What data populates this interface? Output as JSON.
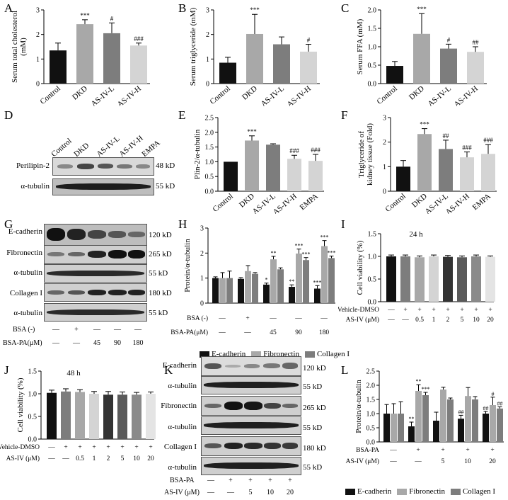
{
  "colors": {
    "black": "#111111",
    "dgray": "#4a4a4a",
    "mgray": "#7d7d7d",
    "lgray": "#a8a8a8",
    "vlgray": "#d4d4d4",
    "mid2": "#666666"
  },
  "panel_letters": {
    "A": "A",
    "B": "B",
    "C": "C",
    "D": "D",
    "E": "E",
    "F": "F",
    "G": "G",
    "H": "H",
    "I": "I",
    "J": "J",
    "K": "K",
    "L": "L"
  },
  "chart_data": [
    {
      "id": "A",
      "type": "bar",
      "ylabel_lines": [
        "Serum total cholesterol",
        "(mM)"
      ],
      "categories": [
        "Control",
        "DKD",
        "AS-IV-L",
        "AS-IV-H"
      ],
      "values": [
        1.35,
        2.42,
        2.05,
        1.55
      ],
      "errors": [
        0.3,
        0.18,
        0.42,
        0.1
      ],
      "ylim": [
        0,
        3
      ],
      "yticks": [
        0,
        1,
        2,
        3
      ],
      "annotations": [
        "",
        "***",
        "#",
        "###"
      ]
    },
    {
      "id": "B",
      "type": "bar",
      "ylabel_lines": [
        "Serum triglyceride (mM)"
      ],
      "categories": [
        "Control",
        "DKD",
        "AS-IV-L",
        "AS-IV-H"
      ],
      "values": [
        0.85,
        2.02,
        1.6,
        1.3
      ],
      "errors": [
        0.22,
        0.8,
        0.3,
        0.3
      ],
      "ylim": [
        0,
        3
      ],
      "yticks": [
        0,
        1,
        2,
        3
      ],
      "annotations": [
        "",
        "***",
        "",
        "#"
      ]
    },
    {
      "id": "C",
      "type": "bar",
      "ylabel_lines": [
        "Serum FFA (mM)"
      ],
      "categories": [
        "Control",
        "DKD",
        "AS-IV-L",
        "AS-IV-H"
      ],
      "values": [
        0.48,
        1.35,
        0.95,
        0.86
      ],
      "errors": [
        0.12,
        0.55,
        0.12,
        0.14
      ],
      "ylim": [
        0,
        2.0
      ],
      "yticks": [
        0,
        0.5,
        1.0,
        1.5,
        2.0
      ],
      "yticklabels": [
        "0.0",
        "0.5",
        "1.0",
        "1.5",
        "2.0"
      ],
      "annotations": [
        "",
        "***",
        "#",
        "##"
      ]
    },
    {
      "id": "E",
      "type": "bar",
      "ylabel_lines": [
        "Plin-2/α-tubulin"
      ],
      "categories": [
        "Control",
        "DKD",
        "AS-IV-L",
        "AS-IV-H",
        "EMPA"
      ],
      "values": [
        1.0,
        1.72,
        1.58,
        1.1,
        1.03
      ],
      "errors": [
        0.0,
        0.16,
        0.03,
        0.12,
        0.22
      ],
      "ylim": [
        0,
        2.5
      ],
      "yticks": [
        0,
        0.5,
        1.0,
        1.5,
        2.0,
        2.5
      ],
      "yticklabels": [
        "0.0",
        "0.5",
        "1.0",
        "1.5",
        "2.0",
        "2.5"
      ],
      "annotations": [
        "",
        "***",
        "",
        "###",
        "###"
      ]
    },
    {
      "id": "F",
      "type": "bar",
      "ylabel_lines": [
        "Triglyceride of",
        "kidney tissue (Fold)"
      ],
      "categories": [
        "Control",
        "DKD",
        "AS-IV-L",
        "AS-IV-H",
        "EMPA"
      ],
      "values": [
        1.0,
        2.33,
        1.72,
        1.38,
        1.52
      ],
      "errors": [
        0.25,
        0.22,
        0.36,
        0.22,
        0.38
      ],
      "ylim": [
        0,
        3
      ],
      "yticks": [
        0,
        1,
        2,
        3
      ],
      "annotations": [
        "",
        "***",
        "##",
        "###",
        "###"
      ]
    },
    {
      "id": "H",
      "type": "grouped-bar",
      "ylabel_lines": [
        "Protein/α-tubulin"
      ],
      "groups": 5,
      "series": [
        {
          "name": "E-cadherin",
          "values": [
            1.0,
            0.97,
            0.74,
            0.65,
            0.58
          ],
          "errors": [
            0.05,
            0.05,
            0.06,
            0.08,
            0.12
          ],
          "annotations": [
            "",
            "",
            "*",
            "**",
            "***"
          ]
        },
        {
          "name": "Fibronectin",
          "values": [
            1.0,
            1.28,
            1.75,
            1.98,
            2.28
          ],
          "errors": [
            0.22,
            0.22,
            0.12,
            0.18,
            0.22
          ],
          "annotations": [
            "",
            "",
            "**",
            "***",
            "***"
          ]
        },
        {
          "name": "Collagen I",
          "values": [
            1.0,
            1.17,
            1.35,
            1.72,
            1.8
          ],
          "errors": [
            0.28,
            0.05,
            0.06,
            0.1,
            0.08
          ],
          "annotations": [
            "",
            "",
            "",
            "***",
            "***"
          ]
        }
      ],
      "ylim": [
        0,
        3
      ],
      "yticks": [
        0,
        1,
        2,
        3
      ],
      "table": [
        {
          "label": "BSA (-)",
          "cells": [
            "—",
            "+",
            "—",
            "—",
            "—"
          ]
        },
        {
          "label": "BSA-PA(μM)",
          "cells": [
            "—",
            "—",
            "45",
            "90",
            "180"
          ]
        }
      ]
    },
    {
      "id": "I",
      "type": "bar",
      "title": "24 h",
      "ylabel_lines": [
        "Cell viability (%)"
      ],
      "values": [
        1.0,
        1.0,
        0.98,
        1.0,
        0.99,
        0.98,
        1.0,
        0.99
      ],
      "errors": [
        0.03,
        0.03,
        0.03,
        0.03,
        0.03,
        0.03,
        0.03,
        0.02
      ],
      "ylim": [
        0,
        1.5
      ],
      "yticks": [
        0,
        0.5,
        1.0,
        1.5
      ],
      "yticklabels": [
        "0.0",
        "0.5",
        "1.0",
        "1.5"
      ],
      "table": [
        {
          "label": "Vehicle-DMSO",
          "cells": [
            "—",
            "+",
            "+",
            "+",
            "+",
            "+",
            "+",
            "+"
          ]
        },
        {
          "label": "AS-IV (μM)",
          "cells": [
            "—",
            "—",
            "0.5",
            "1",
            "2",
            "5",
            "10",
            "20"
          ]
        }
      ]
    },
    {
      "id": "J",
      "type": "bar",
      "title": "48 h",
      "ylabel_lines": [
        "Cell viability (%)"
      ],
      "values": [
        1.02,
        1.05,
        1.04,
        1.0,
        0.98,
        0.98,
        0.98,
        1.0
      ],
      "errors": [
        0.06,
        0.06,
        0.05,
        0.05,
        0.07,
        0.06,
        0.05,
        0.04
      ],
      "ylim": [
        0,
        1.5
      ],
      "yticks": [
        0,
        0.5,
        1.0,
        1.5
      ],
      "yticklabels": [
        "0.0",
        "0.5",
        "1.0",
        "1.5"
      ],
      "table": [
        {
          "label": "Vehicle-DMSO",
          "cells": [
            "—",
            "+",
            "+",
            "+",
            "+",
            "+",
            "+",
            "+"
          ]
        },
        {
          "label": "AS-IV (μM)",
          "cells": [
            "—",
            "—",
            "0.5",
            "1",
            "2",
            "5",
            "10",
            "20"
          ]
        }
      ]
    },
    {
      "id": "L",
      "type": "grouped-bar",
      "ylabel_lines": [
        "Protein/α-tubulin"
      ],
      "groups": 5,
      "series": [
        {
          "name": "E-cadherin",
          "values": [
            1.0,
            0.55,
            0.75,
            0.82,
            1.0
          ],
          "errors": [
            0.32,
            0.15,
            0.3,
            0.12,
            0.08
          ],
          "annotations": [
            "",
            "**",
            "",
            "##",
            "##"
          ]
        },
        {
          "name": "Fibronectin",
          "values": [
            1.0,
            1.8,
            1.85,
            1.62,
            1.3
          ],
          "errors": [
            0.35,
            0.22,
            0.08,
            0.3,
            0.28
          ],
          "annotations": [
            "",
            "**",
            "",
            "",
            "#"
          ]
        },
        {
          "name": "Collagen I",
          "values": [
            1.0,
            1.65,
            1.5,
            1.5,
            1.18
          ],
          "errors": [
            0.42,
            0.1,
            0.05,
            0.1,
            0.06
          ],
          "annotations": [
            "",
            "***",
            "",
            "",
            "##"
          ]
        }
      ],
      "ylim": [
        0,
        2.5
      ],
      "yticks": [
        0,
        0.5,
        1.0,
        1.5,
        2.0,
        2.5
      ],
      "yticklabels": [
        "0.0",
        "0.5",
        "1.0",
        "1.5",
        "2.0",
        "2.5"
      ],
      "table": [
        {
          "label": "BSA-PA",
          "cells": [
            "—",
            "+",
            "+",
            "+",
            "+"
          ]
        },
        {
          "label": "AS-IV (μM)",
          "cells": [
            "—",
            "—",
            "5",
            "10",
            "20"
          ]
        }
      ]
    }
  ],
  "blot_D": {
    "headers": [
      "Control",
      "DKD",
      "AS-IV-L",
      "AS-IV-H",
      "EMPA"
    ],
    "rows": [
      {
        "name": "Perilipin-2",
        "kd": "48 kD"
      },
      {
        "name": "α-tubulin",
        "kd": "55 kD"
      }
    ]
  },
  "blot_G": {
    "rows": [
      {
        "name": "E-cadherin",
        "kd": "120 kD"
      },
      {
        "name": "Fibronectin",
        "kd": "265 kD"
      },
      {
        "name": "α-tubulin",
        "kd": "55 kD"
      },
      {
        "name": "Collagen I",
        "kd": "180 kD"
      },
      {
        "name": "α-tubulin",
        "kd": "55 kD"
      }
    ],
    "table": [
      {
        "label": "BSA (-)",
        "cells": [
          "—",
          "+",
          "—",
          "—",
          "—"
        ]
      },
      {
        "label": "BSA-PA(μM)",
        "cells": [
          "—",
          "—",
          "45",
          "90",
          "180"
        ]
      }
    ]
  },
  "blot_K": {
    "rows": [
      {
        "name": "E-cadherin",
        "kd": "120 kD"
      },
      {
        "name": "α-tubulin",
        "kd": "55 kD"
      },
      {
        "name": "Fibronectin",
        "kd": "265 kD"
      },
      {
        "name": "α-tubulin",
        "kd": "55 kD"
      },
      {
        "name": "Collagen I",
        "kd": "180 kD"
      },
      {
        "name": "α-tubulin",
        "kd": "55 kD"
      }
    ],
    "table": [
      {
        "label": "BSA-PA",
        "cells": [
          "—",
          "+",
          "+",
          "+",
          "+"
        ]
      },
      {
        "label": "AS-IV (μM)",
        "cells": [
          "—",
          "—",
          "5",
          "10",
          "20"
        ]
      }
    ]
  },
  "legend": [
    "E-cadherin",
    "Fibronectin",
    "Collagen I"
  ]
}
